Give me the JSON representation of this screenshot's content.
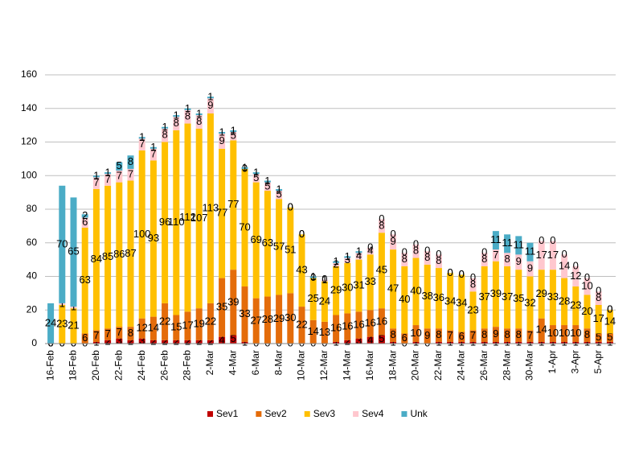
{
  "chart_data": {
    "type": "bar",
    "stacked": true,
    "categories": [
      "16-Feb",
      null,
      "18-Feb",
      null,
      "20-Feb",
      null,
      "22-Feb",
      null,
      "24-Feb",
      null,
      "26-Feb",
      null,
      "28-Feb",
      null,
      "2-Mar",
      null,
      "4-Mar",
      null,
      "6-Mar",
      null,
      "8-Mar",
      null,
      "10-Mar",
      null,
      "12-Mar",
      null,
      "14-Mar",
      null,
      "16-Mar",
      null,
      "18-Mar",
      null,
      "20-Mar",
      null,
      "22-Mar",
      null,
      "24-Mar",
      null,
      "26-Mar",
      null,
      "28-Mar",
      null,
      "30-Mar",
      null,
      "1-Apr",
      null,
      "3-Apr",
      null,
      "5-Apr",
      null
    ],
    "series": [
      {
        "name": "Sev1",
        "color": "#c00000",
        "values": [
          0,
          0,
          0,
          0,
          1,
          2,
          3,
          2,
          3,
          2,
          2,
          2,
          2,
          2,
          2,
          4,
          5,
          1,
          0,
          0,
          0,
          0,
          0,
          0,
          0,
          1,
          2,
          3,
          4,
          5,
          1,
          0,
          1,
          0,
          1,
          1,
          1,
          1,
          1,
          1,
          1,
          1,
          1,
          1,
          1,
          1,
          1,
          1,
          1,
          1
        ]
      },
      {
        "name": "Sev2",
        "color": "#e46c0a",
        "values": [
          0,
          0,
          0,
          6,
          7,
          7,
          7,
          8,
          12,
          14,
          22,
          15,
          17,
          19,
          22,
          35,
          39,
          33,
          27,
          28,
          29,
          30,
          22,
          14,
          13,
          16,
          16,
          16,
          16,
          16,
          8,
          6,
          10,
          9,
          8,
          7,
          6,
          7,
          8,
          9,
          8,
          8,
          7,
          14,
          10,
          10,
          10,
          8,
          5,
          5
        ]
      },
      {
        "name": "Sev3",
        "color": "#ffc000",
        "values": [
          0,
          23,
          21,
          63,
          84,
          85,
          86,
          87,
          100,
          93,
          96,
          110,
          112,
          107,
          113,
          77,
          77,
          70,
          69,
          63,
          57,
          51,
          43,
          25,
          24,
          29,
          30,
          31,
          33,
          45,
          47,
          40,
          40,
          38,
          36,
          34,
          34,
          23,
          37,
          39,
          37,
          35,
          32,
          29,
          33,
          28,
          23,
          20,
          17,
          14
        ]
      },
      {
        "name": "Sev4",
        "color": "#ffc7ce",
        "values": [
          0,
          1,
          1,
          6,
          7,
          7,
          7,
          7,
          7,
          7,
          8,
          8,
          8,
          8,
          9,
          9,
          5,
          0,
          5,
          5,
          5,
          0,
          0,
          0,
          1,
          2,
          3,
          4,
          4,
          8,
          9,
          8,
          8,
          8,
          8,
          0,
          0,
          8,
          8,
          7,
          8,
          9,
          9,
          17,
          17,
          14,
          12,
          10,
          8,
          0
        ]
      },
      {
        "name": "Unk",
        "color": "#4bacc6",
        "values": [
          24,
          70,
          65,
          2,
          1,
          1,
          5,
          8,
          1,
          1,
          1,
          1,
          1,
          1,
          1,
          1,
          1,
          1,
          1,
          1,
          1,
          0,
          0,
          1,
          0,
          1,
          1,
          1,
          0,
          0,
          0,
          0,
          0,
          0,
          0,
          0,
          0,
          0,
          0,
          11,
          11,
          11,
          11,
          0,
          0,
          0,
          0,
          0,
          0,
          0
        ]
      }
    ],
    "ylim": [
      0,
      160
    ],
    "yticks": [
      0,
      20,
      40,
      60,
      80,
      100,
      120,
      140,
      160
    ],
    "grid": true,
    "legend": "bottom"
  }
}
